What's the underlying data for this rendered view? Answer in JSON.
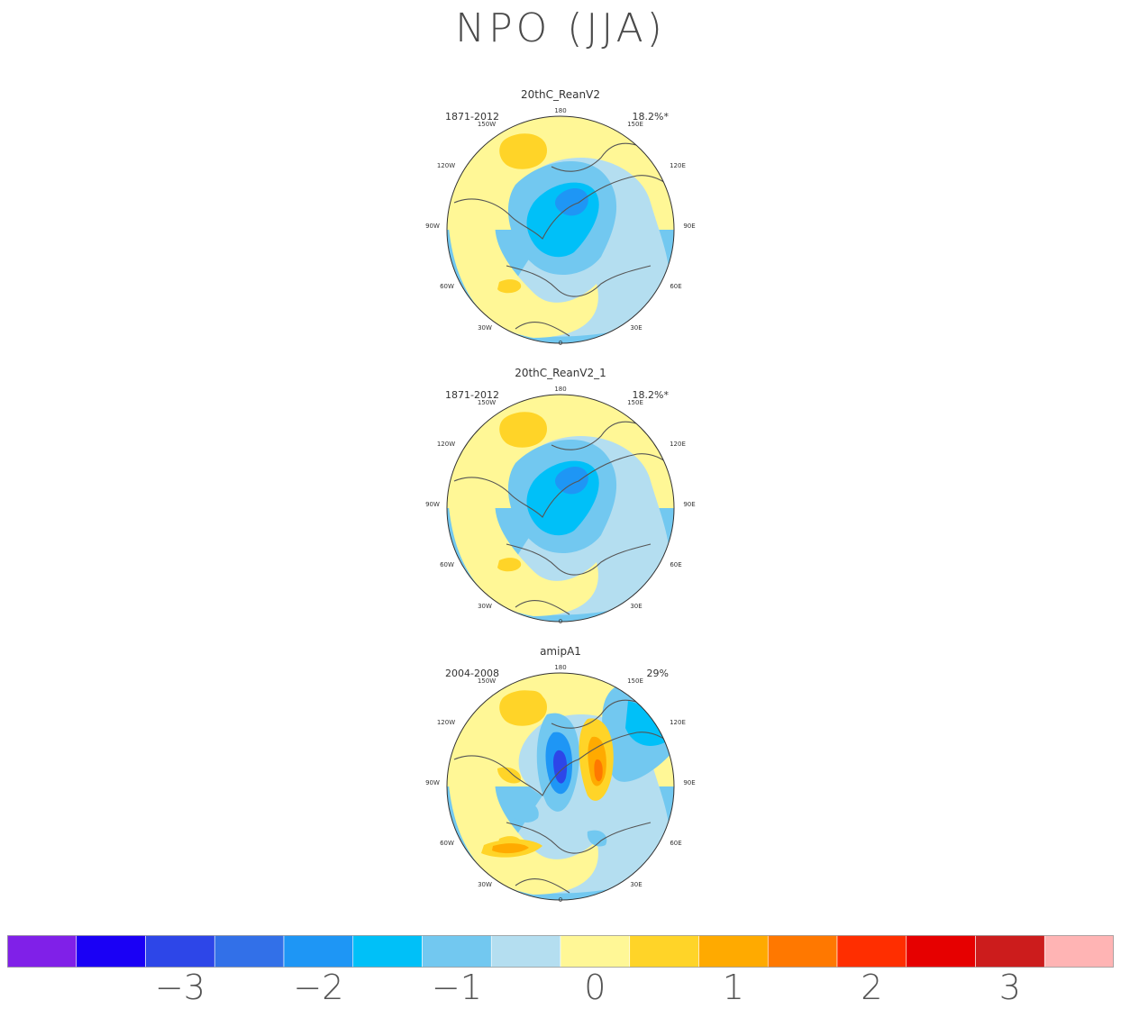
{
  "title": "NPO (JJA)",
  "lon_labels": [
    "180",
    "150E",
    "120E",
    "90E",
    "60E",
    "30E",
    "0",
    "30W",
    "60W",
    "90W",
    "120W",
    "150W"
  ],
  "panels": [
    {
      "name": "20thC_ReanV2",
      "years": "1871-2012",
      "pct": "18.2%*"
    },
    {
      "name": "20thC_ReanV2_1",
      "years": "1871-2012",
      "pct": "18.2%*"
    },
    {
      "name": "amipA1",
      "years": "2004-2008",
      "pct": "29%"
    }
  ],
  "chart_data": {
    "type": "heatmap",
    "projection": "north polar stereographic",
    "colorbar": {
      "colors": [
        "#8020e8",
        "#1a00f5",
        "#2d46e8",
        "#3270e8",
        "#1e96f5",
        "#00c0f8",
        "#72c8f0",
        "#b4def0",
        "#fff796",
        "#ffd428",
        "#ffaa00",
        "#ff7800",
        "#ff2e00",
        "#e60000",
        "#cc1c1c",
        "#ffb4b4"
      ],
      "tick_values": [
        -3,
        -2,
        -1,
        0,
        1,
        2,
        3
      ],
      "tick_labels": [
        "-3",
        "-2",
        "-1",
        "0",
        "1",
        "2",
        "3"
      ]
    }
  }
}
